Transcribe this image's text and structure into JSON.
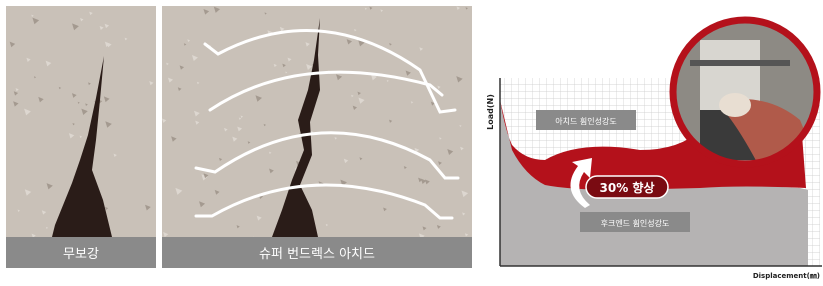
{
  "panels": [
    {
      "label": "무보강"
    },
    {
      "label": "슈퍼 번드렉스 아치드"
    }
  ],
  "graph": {
    "y_axis_label": "Load(N)",
    "x_axis_label": "Displacement(㎜)",
    "upper_label": "아치드 휨인성강도",
    "improvement": "30% 향상",
    "lower_label": "후크엔드 휨인성강도"
  }
}
